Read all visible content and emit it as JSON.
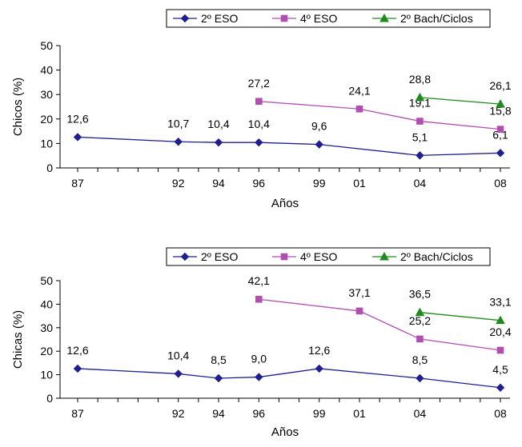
{
  "colors": {
    "eso2": "#1f1f8f",
    "eso4": "#b04fb0",
    "bach": "#1f8a1f",
    "axis": "#000000"
  },
  "chart_data": [
    {
      "type": "line",
      "xlabel": "Años",
      "ylabel": "Chicos (%)",
      "categories": [
        "87",
        "92",
        "94",
        "96",
        "99",
        "01",
        "04",
        "08"
      ],
      "x": [
        1987,
        1992,
        1994,
        1996,
        1999,
        2001,
        2004,
        2008
      ],
      "ylim": [
        0,
        50
      ],
      "yticks": [
        0,
        10,
        20,
        30,
        40,
        50
      ],
      "grid": false,
      "legend_position": "top",
      "series": [
        {
          "name": "2º ESO",
          "marker": "diamond",
          "color": "#1f1f8f",
          "points": [
            [
              1987,
              12.6
            ],
            [
              1992,
              10.7
            ],
            [
              1994,
              10.4
            ],
            [
              1996,
              10.4
            ],
            [
              1999,
              9.6
            ],
            [
              2004,
              5.1
            ],
            [
              2008,
              6.1
            ]
          ],
          "labels": [
            "12,6",
            "10,7",
            "10,4",
            "10,4",
            "9,6",
            "5,1",
            "6,1"
          ]
        },
        {
          "name": "4º ESO",
          "marker": "square",
          "color": "#b04fb0",
          "points": [
            [
              1996,
              27.2
            ],
            [
              2001,
              24.1
            ],
            [
              2004,
              19.1
            ],
            [
              2008,
              15.8
            ]
          ],
          "labels": [
            "27,2",
            "24,1",
            "19,1",
            "15,8"
          ]
        },
        {
          "name": "2º Bach/Ciclos",
          "marker": "triangle",
          "color": "#1f8a1f",
          "points": [
            [
              2004,
              28.8
            ],
            [
              2008,
              26.1
            ]
          ],
          "labels": [
            "28,8",
            "26,1"
          ]
        }
      ]
    },
    {
      "type": "line",
      "xlabel": "Años",
      "ylabel": "Chicas (%)",
      "categories": [
        "87",
        "92",
        "94",
        "96",
        "99",
        "01",
        "04",
        "08"
      ],
      "x": [
        1987,
        1992,
        1994,
        1996,
        1999,
        2001,
        2004,
        2008
      ],
      "ylim": [
        0,
        50
      ],
      "yticks": [
        0,
        10,
        20,
        30,
        40,
        50
      ],
      "grid": false,
      "legend_position": "top",
      "series": [
        {
          "name": "2º ESO",
          "marker": "diamond",
          "color": "#1f1f8f",
          "points": [
            [
              1987,
              12.6
            ],
            [
              1992,
              10.4
            ],
            [
              1994,
              8.5
            ],
            [
              1996,
              9.0
            ],
            [
              1999,
              12.6
            ],
            [
              2004,
              8.5
            ],
            [
              2008,
              4.5
            ]
          ],
          "labels": [
            "12,6",
            "10,4",
            "8,5",
            "9,0",
            "12,6",
            "8,5",
            "4,5"
          ]
        },
        {
          "name": "4º ESO",
          "marker": "square",
          "color": "#b04fb0",
          "points": [
            [
              1996,
              42.1
            ],
            [
              2001,
              37.1
            ],
            [
              2004,
              25.2
            ],
            [
              2008,
              20.4
            ]
          ],
          "labels": [
            "42,1",
            "37,1",
            "25,2",
            "20,4"
          ]
        },
        {
          "name": "2º Bach/Ciclos",
          "marker": "triangle",
          "color": "#1f8a1f",
          "points": [
            [
              2004,
              36.5
            ],
            [
              2008,
              33.1
            ]
          ],
          "labels": [
            "36,5",
            "33,1"
          ]
        }
      ]
    }
  ]
}
